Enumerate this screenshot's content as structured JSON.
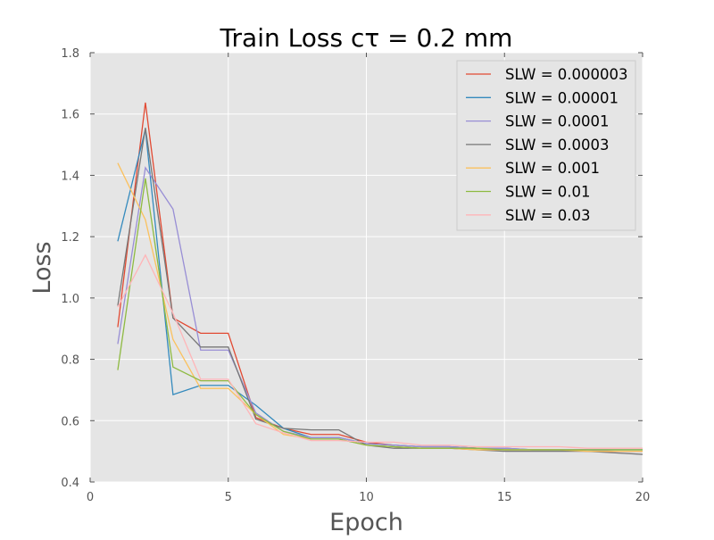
{
  "chart_data": {
    "type": "line",
    "title": "Train Loss cτ = 0.2 mm",
    "xlabel": "Epoch",
    "ylabel": "Loss",
    "xlim": [
      0,
      20
    ],
    "ylim": [
      0.4,
      1.8
    ],
    "x_ticks": [
      "0",
      "5",
      "10",
      "15",
      "20"
    ],
    "y_ticks": [
      "0.4",
      "0.6",
      "0.8",
      "1.0",
      "1.2",
      "1.4",
      "1.6",
      "1.8"
    ],
    "grid": true,
    "legend_position": "top-right",
    "colors": {
      "background": "#e5e5e5",
      "grid": "#ffffff"
    },
    "x": [
      1,
      2,
      3,
      4,
      5,
      6,
      7,
      8,
      9,
      10,
      11,
      12,
      13,
      14,
      15,
      16,
      17,
      18,
      19,
      20
    ],
    "series": [
      {
        "name": "SLW = 0.000003",
        "color": "#e24a33",
        "values": [
          0.905,
          1.637,
          0.935,
          0.885,
          0.885,
          0.61,
          0.575,
          0.555,
          0.555,
          0.53,
          0.52,
          0.515,
          0.515,
          0.51,
          0.505,
          0.505,
          0.505,
          0.5,
          0.5,
          0.5
        ]
      },
      {
        "name": "SLW = 0.00001",
        "color": "#348abd",
        "values": [
          1.185,
          1.55,
          0.685,
          0.715,
          0.715,
          0.65,
          0.575,
          0.545,
          0.545,
          0.525,
          0.52,
          0.515,
          0.515,
          0.51,
          0.51,
          0.505,
          0.505,
          0.505,
          0.505,
          0.505
        ]
      },
      {
        "name": "SLW = 0.0001",
        "color": "#988ed5",
        "values": [
          0.85,
          1.425,
          1.29,
          0.83,
          0.83,
          0.625,
          0.565,
          0.545,
          0.545,
          0.525,
          0.52,
          0.515,
          0.515,
          0.51,
          0.51,
          0.505,
          0.505,
          0.505,
          0.5,
          0.5
        ]
      },
      {
        "name": "SLW = 0.0003",
        "color": "#777777",
        "values": [
          0.975,
          1.555,
          0.935,
          0.84,
          0.84,
          0.605,
          0.575,
          0.57,
          0.57,
          0.52,
          0.51,
          0.51,
          0.51,
          0.505,
          0.5,
          0.5,
          0.5,
          0.5,
          0.495,
          0.49
        ]
      },
      {
        "name": "SLW = 0.001",
        "color": "#fbc15e",
        "values": [
          1.44,
          1.255,
          0.865,
          0.705,
          0.705,
          0.62,
          0.555,
          0.54,
          0.54,
          0.52,
          0.515,
          0.51,
          0.51,
          0.505,
          0.505,
          0.505,
          0.505,
          0.5,
          0.5,
          0.5
        ]
      },
      {
        "name": "SLW = 0.01",
        "color": "#8eba42",
        "values": [
          0.765,
          1.39,
          0.775,
          0.73,
          0.73,
          0.62,
          0.565,
          0.54,
          0.54,
          0.52,
          0.515,
          0.51,
          0.51,
          0.51,
          0.505,
          0.505,
          0.505,
          0.505,
          0.505,
          0.505
        ]
      },
      {
        "name": "SLW = 0.03",
        "color": "#ffb5b8",
        "values": [
          0.97,
          1.14,
          0.95,
          0.735,
          0.735,
          0.59,
          0.56,
          0.535,
          0.535,
          0.53,
          0.53,
          0.52,
          0.52,
          0.515,
          0.515,
          0.515,
          0.515,
          0.51,
          0.51,
          0.51
        ]
      }
    ]
  }
}
